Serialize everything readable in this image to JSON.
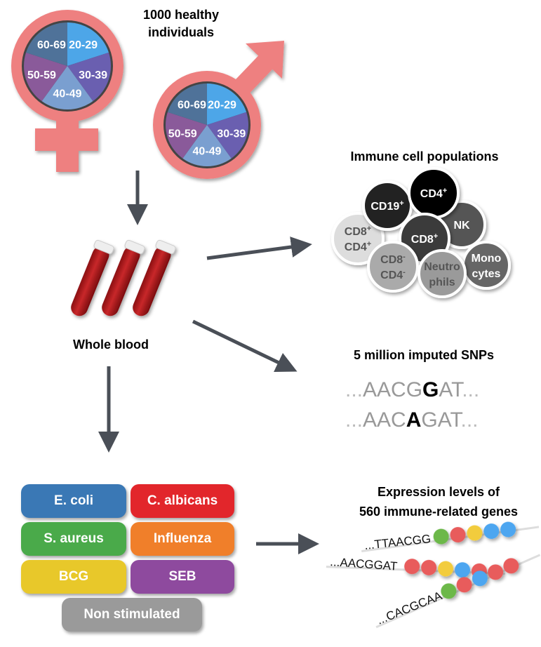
{
  "cohort": {
    "title_line1": "1000 healthy",
    "title_line2": "individuals",
    "age_groups": [
      "20-29",
      "30-39",
      "40-49",
      "50-59",
      "60-69"
    ],
    "age_colors": [
      "#4da6e8",
      "#6a5fb0",
      "#7a9fd0",
      "#8a5a9a",
      "#4f7299"
    ],
    "symbol_color": "#ee8080"
  },
  "blood": {
    "label": "Whole blood"
  },
  "immune": {
    "title": "Immune cell populations",
    "cells": [
      {
        "label": "CD19",
        "sup": "+",
        "color": "#222222"
      },
      {
        "label": "CD4",
        "sup": "+",
        "color": "#000000"
      },
      {
        "label": "NK",
        "sup": "",
        "color": "#555555"
      },
      {
        "label": "CD8",
        "sup": "+",
        "color": "#3a3a3a"
      },
      {
        "label": "CD8",
        "sup": "+",
        "label2": "CD4",
        "sup2": "+",
        "color": "#dddddd"
      },
      {
        "label": "CD8",
        "sup": "-",
        "label2": "CD4",
        "sup2": "-",
        "color": "#aaaaaa"
      },
      {
        "label": "Neutro",
        "label2": "phils",
        "color": "#9a9a9a"
      },
      {
        "label": "Mono",
        "label2": "cytes",
        "color": "#666666"
      }
    ]
  },
  "snps": {
    "title": "5 million imputed SNPs",
    "seq1": {
      "pre": "AACG",
      "variant": "G",
      "post": "AT"
    },
    "seq2": {
      "pre": "AAC",
      "variant": "A",
      "post": "GAT"
    },
    "ellipsis": "..."
  },
  "stimuli": [
    {
      "label": "E. coli",
      "color": "#3a78b5"
    },
    {
      "label": "C. albicans",
      "color": "#e2262b"
    },
    {
      "label": "S. aureus",
      "color": "#4aaa4a"
    },
    {
      "label": "Influenza",
      "color": "#f07f2a"
    },
    {
      "label": "BCG",
      "color": "#e8c82a"
    },
    {
      "label": "SEB",
      "color": "#8e4a9e"
    },
    {
      "label": "Non stimulated",
      "color": "#9a9a9a"
    }
  ],
  "expression": {
    "title_line1": "Expression levels of",
    "title_line2": "560 immune-related genes",
    "sequences": [
      {
        "text": "...TTAACGG",
        "beads": [
          "#6cb84a",
          "#e85c5c",
          "#f2cc3c",
          "#4da6f0",
          "#4da6f0"
        ]
      },
      {
        "text": "...AACGGAT",
        "beads": [
          "#e85c5c",
          "#e85c5c",
          "#f2cc3c",
          "#4da6f0",
          "#e85c5c"
        ]
      },
      {
        "text": "...CACGCAA",
        "beads": [
          "#6cb84a",
          "#e85c5c",
          "#4da6f0",
          "#e85c5c",
          "#e85c5c"
        ]
      }
    ]
  }
}
